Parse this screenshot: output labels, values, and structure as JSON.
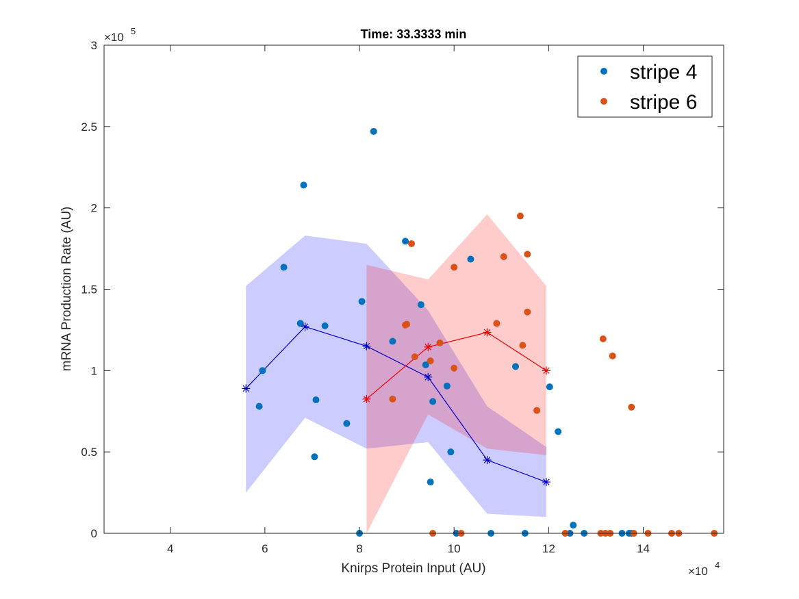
{
  "chart_data": {
    "type": "scatter",
    "title": "Time: 33.3333 min",
    "xlabel": "Knirps Protein Input (AU)",
    "ylabel": "mRNA Production Rate (AU)",
    "x_exponent": {
      "base": "×10",
      "power": "4"
    },
    "y_exponent": {
      "base": "×10",
      "power": "5"
    },
    "xlim": [
      2.6,
      15.7
    ],
    "ylim": [
      0,
      3
    ],
    "x_ticks": [
      4,
      6,
      8,
      10,
      12,
      14
    ],
    "x_tick_labels": [
      "4",
      "6",
      "8",
      "10",
      "12",
      "14"
    ],
    "y_ticks": [
      0,
      0.5,
      1,
      1.5,
      2,
      2.5,
      3
    ],
    "y_tick_labels": [
      "0",
      "0.5",
      "1",
      "1.5",
      "2",
      "2.5",
      "3"
    ],
    "grid": false,
    "legend_position": "top-right",
    "colors": {
      "stripe4_points": "#0072BD",
      "stripe6_points": "#D95319",
      "stripe4_band": "#0000ff",
      "stripe6_band": "#ff0000",
      "stripe4_line": "#0000cc",
      "stripe6_line": "#ee0000"
    },
    "series": [
      {
        "name": "stripe 4",
        "points": [
          [
            5.88,
            0.78
          ],
          [
            5.95,
            1.0
          ],
          [
            6.4,
            1.635
          ],
          [
            6.75,
            1.29
          ],
          [
            6.82,
            2.14
          ],
          [
            7.05,
            0.47
          ],
          [
            7.08,
            0.82
          ],
          [
            7.27,
            1.275
          ],
          [
            7.73,
            0.675
          ],
          [
            8.0,
            0.0
          ],
          [
            8.05,
            1.425
          ],
          [
            8.3,
            2.47
          ],
          [
            8.7,
            1.18
          ],
          [
            8.97,
            1.795
          ],
          [
            9.3,
            1.405
          ],
          [
            9.4,
            1.035
          ],
          [
            9.5,
            0.315
          ],
          [
            9.55,
            0.81
          ],
          [
            9.85,
            0.905
          ],
          [
            9.93,
            0.5
          ],
          [
            10.05,
            0.0
          ],
          [
            10.35,
            1.685
          ],
          [
            10.78,
            0.0
          ],
          [
            11.3,
            1.025
          ],
          [
            11.5,
            0.0
          ],
          [
            12.02,
            0.9
          ],
          [
            12.2,
            0.625
          ],
          [
            12.45,
            0.0
          ],
          [
            12.52,
            0.05
          ],
          [
            12.75,
            0.0
          ],
          [
            13.55,
            0.0
          ],
          [
            13.7,
            0.0
          ],
          [
            13.75,
            0.0
          ]
        ],
        "binned_x": [
          5.6,
          6.85,
          8.15,
          9.45,
          10.7,
          11.95
        ],
        "binned_mean": [
          0.89,
          1.27,
          1.15,
          0.96,
          0.45,
          0.315
        ],
        "band_upper": [
          1.52,
          1.83,
          1.78,
          1.37,
          0.78,
          0.53
        ],
        "band_lower": [
          0.25,
          0.71,
          0.52,
          0.56,
          0.12,
          0.1
        ]
      },
      {
        "name": "stripe 6",
        "points": [
          [
            8.7,
            0.825
          ],
          [
            8.97,
            1.28
          ],
          [
            9.0,
            1.285
          ],
          [
            9.1,
            1.78
          ],
          [
            9.17,
            1.085
          ],
          [
            9.5,
            1.06
          ],
          [
            9.55,
            0.0
          ],
          [
            9.7,
            1.17
          ],
          [
            10.0,
            1.635
          ],
          [
            10.0,
            1.015
          ],
          [
            10.15,
            0.0
          ],
          [
            10.9,
            1.29
          ],
          [
            11.05,
            1.7
          ],
          [
            11.4,
            1.95
          ],
          [
            11.45,
            1.155
          ],
          [
            11.55,
            1.715
          ],
          [
            11.55,
            1.36
          ],
          [
            11.75,
            0.755
          ],
          [
            12.35,
            0.0
          ],
          [
            13.1,
            0.0
          ],
          [
            13.15,
            1.195
          ],
          [
            13.2,
            0.0
          ],
          [
            13.3,
            0.0
          ],
          [
            13.35,
            1.09
          ],
          [
            13.75,
            0.775
          ],
          [
            13.8,
            0.0
          ],
          [
            14.1,
            0.0
          ],
          [
            14.6,
            0.0
          ],
          [
            14.75,
            0.0
          ],
          [
            15.5,
            0.0
          ]
        ],
        "binned_x": [
          8.15,
          9.45,
          10.7,
          11.95
        ],
        "binned_mean": [
          0.825,
          1.145,
          1.235,
          1.0
        ],
        "band_upper": [
          1.65,
          1.56,
          1.96,
          1.52
        ],
        "band_lower": [
          0.0,
          0.73,
          0.52,
          0.48
        ]
      }
    ]
  }
}
